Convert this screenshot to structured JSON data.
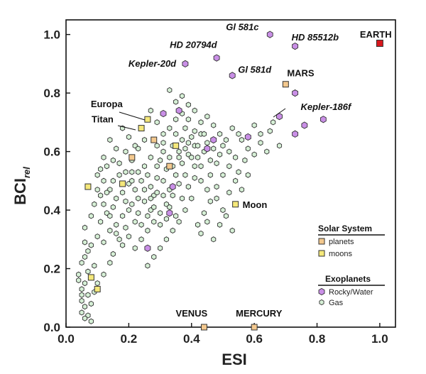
{
  "chart_data": {
    "type": "scatter",
    "xlabel": "ESI",
    "ylabel_main": "BCI",
    "ylabel_sub": "rel",
    "xlim": [
      0,
      1.05
    ],
    "ylim": [
      0,
      1.05
    ],
    "xticks": [
      "0.0",
      "0.2",
      "0.4",
      "0.6",
      "0.8",
      "1.0"
    ],
    "xtick_values": [
      0,
      0.2,
      0.4,
      0.6,
      0.8,
      1.0
    ],
    "yticks": [
      "0.0",
      "0.2",
      "0.4",
      "0.6",
      "0.8",
      "1.0"
    ],
    "ytick_values": [
      0,
      0.2,
      0.4,
      0.6,
      0.8,
      1.0
    ],
    "colors": {
      "earth": "#d8171c",
      "planet": "#f3c88e",
      "moon": "#f5e87a",
      "rocky": "#c98fe6",
      "gas": "#d6f0d6",
      "edge": "#333333"
    },
    "legend": {
      "solar_title": "Solar System",
      "solar_items": [
        {
          "label": "planets",
          "marker": "planet"
        },
        {
          "label": "moons",
          "marker": "moon"
        }
      ],
      "exo_title": "Exoplanets",
      "exo_items": [
        {
          "label": "Rocky/Water",
          "marker": "rocky"
        },
        {
          "label": "Gas",
          "marker": "gas"
        }
      ]
    },
    "series": [
      {
        "name": "Earth",
        "category": "earth",
        "points": [
          [
            1.0,
            0.97
          ]
        ]
      },
      {
        "name": "Solar System planets",
        "category": "planet",
        "points": [
          [
            0.7,
            0.83
          ],
          [
            0.44,
            0.0
          ],
          [
            0.6,
            0.0
          ],
          [
            0.21,
            0.58
          ],
          [
            0.33,
            0.55
          ],
          [
            0.28,
            0.64
          ]
        ]
      },
      {
        "name": "Solar System moons",
        "category": "moon",
        "points": [
          [
            0.26,
            0.71
          ],
          [
            0.24,
            0.68
          ],
          [
            0.54,
            0.42
          ],
          [
            0.07,
            0.48
          ],
          [
            0.08,
            0.17
          ],
          [
            0.1,
            0.13
          ],
          [
            0.35,
            0.62
          ],
          [
            0.18,
            0.49
          ]
        ]
      },
      {
        "name": "Rocky/Water exoplanets",
        "category": "rocky",
        "points": [
          [
            0.65,
            1.0
          ],
          [
            0.73,
            0.96
          ],
          [
            0.48,
            0.92
          ],
          [
            0.38,
            0.9
          ],
          [
            0.53,
            0.86
          ],
          [
            0.73,
            0.8
          ],
          [
            0.68,
            0.72
          ],
          [
            0.82,
            0.71
          ],
          [
            0.76,
            0.69
          ],
          [
            0.73,
            0.66
          ],
          [
            0.58,
            0.65
          ],
          [
            0.36,
            0.74
          ],
          [
            0.31,
            0.73
          ],
          [
            0.47,
            0.64
          ],
          [
            0.33,
            0.39
          ],
          [
            0.26,
            0.27
          ],
          [
            0.34,
            0.48
          ],
          [
            0.45,
            0.61
          ]
        ]
      },
      {
        "name": "Gas exoplanets",
        "category": "gas",
        "points": [
          [
            0.05,
            0.05
          ],
          [
            0.06,
            0.07
          ],
          [
            0.05,
            0.09
          ],
          [
            0.07,
            0.11
          ],
          [
            0.05,
            0.13
          ],
          [
            0.06,
            0.15
          ],
          [
            0.04,
            0.18
          ],
          [
            0.07,
            0.19
          ],
          [
            0.09,
            0.21
          ],
          [
            0.06,
            0.24
          ],
          [
            0.08,
            0.28
          ],
          [
            0.1,
            0.31
          ],
          [
            0.12,
            0.29
          ],
          [
            0.14,
            0.33
          ],
          [
            0.11,
            0.36
          ],
          [
            0.13,
            0.39
          ],
          [
            0.15,
            0.41
          ],
          [
            0.16,
            0.44
          ],
          [
            0.14,
            0.47
          ],
          [
            0.12,
            0.5
          ],
          [
            0.1,
            0.52
          ],
          [
            0.13,
            0.55
          ],
          [
            0.15,
            0.57
          ],
          [
            0.17,
            0.52
          ],
          [
            0.18,
            0.46
          ],
          [
            0.19,
            0.43
          ],
          [
            0.2,
            0.49
          ],
          [
            0.21,
            0.53
          ],
          [
            0.22,
            0.47
          ],
          [
            0.23,
            0.44
          ],
          [
            0.24,
            0.5
          ],
          [
            0.25,
            0.55
          ],
          [
            0.26,
            0.52
          ],
          [
            0.27,
            0.48
          ],
          [
            0.28,
            0.45
          ],
          [
            0.29,
            0.51
          ],
          [
            0.3,
            0.57
          ],
          [
            0.31,
            0.6
          ],
          [
            0.32,
            0.54
          ],
          [
            0.33,
            0.58
          ],
          [
            0.34,
            0.62
          ],
          [
            0.35,
            0.66
          ],
          [
            0.36,
            0.6
          ],
          [
            0.37,
            0.64
          ],
          [
            0.38,
            0.68
          ],
          [
            0.39,
            0.71
          ],
          [
            0.4,
            0.65
          ],
          [
            0.41,
            0.62
          ],
          [
            0.42,
            0.58
          ],
          [
            0.43,
            0.55
          ],
          [
            0.44,
            0.6
          ],
          [
            0.45,
            0.63
          ],
          [
            0.46,
            0.57
          ],
          [
            0.47,
            0.61
          ],
          [
            0.48,
            0.56
          ],
          [
            0.49,
            0.59
          ],
          [
            0.5,
            0.62
          ],
          [
            0.52,
            0.6
          ],
          [
            0.54,
            0.58
          ],
          [
            0.56,
            0.64
          ],
          [
            0.58,
            0.61
          ],
          [
            0.6,
            0.59
          ],
          [
            0.62,
            0.63
          ],
          [
            0.65,
            0.67
          ],
          [
            0.64,
            0.6
          ],
          [
            0.38,
            0.52
          ],
          [
            0.36,
            0.49
          ],
          [
            0.34,
            0.45
          ],
          [
            0.32,
            0.42
          ],
          [
            0.3,
            0.39
          ],
          [
            0.28,
            0.36
          ],
          [
            0.26,
            0.33
          ],
          [
            0.24,
            0.3
          ],
          [
            0.22,
            0.36
          ],
          [
            0.2,
            0.4
          ],
          [
            0.18,
            0.38
          ],
          [
            0.16,
            0.35
          ],
          [
            0.14,
            0.22
          ],
          [
            0.12,
            0.18
          ],
          [
            0.1,
            0.15
          ],
          [
            0.09,
            0.12
          ],
          [
            0.08,
            0.08
          ],
          [
            0.07,
            0.04
          ],
          [
            0.15,
            0.25
          ],
          [
            0.17,
            0.3
          ],
          [
            0.19,
            0.34
          ],
          [
            0.21,
            0.42
          ],
          [
            0.23,
            0.39
          ],
          [
            0.25,
            0.43
          ],
          [
            0.27,
            0.4
          ],
          [
            0.29,
            0.46
          ],
          [
            0.31,
            0.5
          ],
          [
            0.33,
            0.47
          ],
          [
            0.35,
            0.52
          ],
          [
            0.37,
            0.56
          ],
          [
            0.39,
            0.59
          ],
          [
            0.41,
            0.55
          ],
          [
            0.43,
            0.5
          ],
          [
            0.45,
            0.47
          ],
          [
            0.4,
            0.44
          ],
          [
            0.38,
            0.4
          ],
          [
            0.36,
            0.36
          ],
          [
            0.34,
            0.33
          ],
          [
            0.32,
            0.3
          ],
          [
            0.3,
            0.27
          ],
          [
            0.28,
            0.24
          ],
          [
            0.26,
            0.21
          ],
          [
            0.42,
            0.35
          ],
          [
            0.44,
            0.39
          ],
          [
            0.46,
            0.43
          ],
          [
            0.48,
            0.48
          ],
          [
            0.5,
            0.52
          ],
          [
            0.52,
            0.55
          ],
          [
            0.55,
            0.53
          ],
          [
            0.57,
            0.57
          ],
          [
            0.39,
            0.76
          ],
          [
            0.37,
            0.79
          ],
          [
            0.35,
            0.77
          ],
          [
            0.33,
            0.81
          ],
          [
            0.41,
            0.74
          ],
          [
            0.43,
            0.7
          ],
          [
            0.45,
            0.72
          ],
          [
            0.27,
            0.74
          ],
          [
            0.29,
            0.7
          ],
          [
            0.31,
            0.66
          ],
          [
            0.22,
            0.62
          ],
          [
            0.2,
            0.65
          ],
          [
            0.18,
            0.68
          ],
          [
            0.16,
            0.61
          ],
          [
            0.14,
            0.64
          ],
          [
            0.12,
            0.58
          ],
          [
            0.11,
            0.45
          ],
          [
            0.09,
            0.42
          ],
          [
            0.08,
            0.38
          ],
          [
            0.06,
            0.34
          ],
          [
            0.06,
            0.29
          ],
          [
            0.07,
            0.26
          ],
          [
            0.05,
            0.22
          ],
          [
            0.04,
            0.16
          ],
          [
            0.05,
            0.11
          ],
          [
            0.06,
            0.03
          ],
          [
            0.08,
            0.02
          ],
          [
            0.19,
            0.6
          ],
          [
            0.21,
            0.57
          ],
          [
            0.23,
            0.61
          ],
          [
            0.25,
            0.64
          ],
          [
            0.27,
            0.58
          ],
          [
            0.29,
            0.62
          ],
          [
            0.31,
            0.45
          ],
          [
            0.33,
            0.41
          ],
          [
            0.35,
            0.38
          ],
          [
            0.37,
            0.44
          ],
          [
            0.39,
            0.48
          ],
          [
            0.41,
            0.51
          ],
          [
            0.43,
            0.66
          ],
          [
            0.47,
            0.69
          ],
          [
            0.49,
            0.66
          ],
          [
            0.51,
            0.64
          ],
          [
            0.53,
            0.68
          ],
          [
            0.55,
            0.66
          ],
          [
            0.6,
            0.69
          ],
          [
            0.62,
            0.66
          ],
          [
            0.66,
            0.7
          ],
          [
            0.68,
            0.62
          ],
          [
            0.17,
            0.56
          ],
          [
            0.19,
            0.53
          ],
          [
            0.21,
            0.5
          ],
          [
            0.23,
            0.53
          ],
          [
            0.25,
            0.47
          ],
          [
            0.27,
            0.44
          ],
          [
            0.29,
            0.55
          ],
          [
            0.31,
            0.63
          ],
          [
            0.33,
            0.68
          ],
          [
            0.35,
            0.71
          ],
          [
            0.37,
            0.73
          ],
          [
            0.39,
            0.63
          ],
          [
            0.41,
            0.67
          ],
          [
            0.13,
            0.46
          ],
          [
            0.15,
            0.5
          ],
          [
            0.11,
            0.54
          ],
          [
            0.1,
            0.47
          ],
          [
            0.12,
            0.42
          ],
          [
            0.14,
            0.38
          ],
          [
            0.16,
            0.32
          ],
          [
            0.18,
            0.28
          ],
          [
            0.2,
            0.31
          ],
          [
            0.22,
            0.27
          ],
          [
            0.24,
            0.35
          ],
          [
            0.26,
            0.38
          ],
          [
            0.28,
            0.41
          ],
          [
            0.3,
            0.35
          ],
          [
            0.32,
            0.37
          ],
          [
            0.34,
            0.55
          ],
          [
            0.36,
            0.58
          ],
          [
            0.38,
            0.61
          ],
          [
            0.4,
            0.58
          ],
          [
            0.42,
            0.62
          ],
          [
            0.44,
            0.66
          ],
          [
            0.46,
            0.52
          ],
          [
            0.48,
            0.44
          ],
          [
            0.5,
            0.4
          ],
          [
            0.52,
            0.46
          ],
          [
            0.54,
            0.5
          ],
          [
            0.56,
            0.47
          ],
          [
            0.58,
            0.52
          ],
          [
            0.43,
            0.32
          ],
          [
            0.45,
            0.36
          ],
          [
            0.47,
            0.3
          ],
          [
            0.49,
            0.35
          ],
          [
            0.51,
            0.38
          ],
          [
            0.53,
            0.33
          ]
        ]
      }
    ],
    "annotations": [
      {
        "text": "EARTH",
        "italic": false,
        "x": 1.0,
        "y": 0.97
      },
      {
        "text": "Gl 581c",
        "italic": true,
        "x": 0.65,
        "y": 1.0
      },
      {
        "text": "HD 85512b",
        "italic": true,
        "x": 0.73,
        "y": 0.96
      },
      {
        "text": "HD 20794d",
        "italic": true,
        "x": 0.48,
        "y": 0.92
      },
      {
        "text": "Kepler-20d",
        "italic": true,
        "x": 0.38,
        "y": 0.9
      },
      {
        "text": "Gl 581d",
        "italic": true,
        "x": 0.53,
        "y": 0.86
      },
      {
        "text": "MARS",
        "italic": false,
        "x": 0.7,
        "y": 0.83
      },
      {
        "text": "Kepler-186f",
        "italic": true,
        "x": 0.68,
        "y": 0.72
      },
      {
        "text": "Europa",
        "italic": false,
        "x": 0.26,
        "y": 0.71
      },
      {
        "text": "Titan",
        "italic": false,
        "x": 0.24,
        "y": 0.68
      },
      {
        "text": "Moon",
        "italic": false,
        "x": 0.54,
        "y": 0.42
      },
      {
        "text": "VENUS",
        "italic": false,
        "x": 0.44,
        "y": 0.0
      },
      {
        "text": "MERCURY",
        "italic": false,
        "x": 0.6,
        "y": 0.0
      }
    ]
  }
}
